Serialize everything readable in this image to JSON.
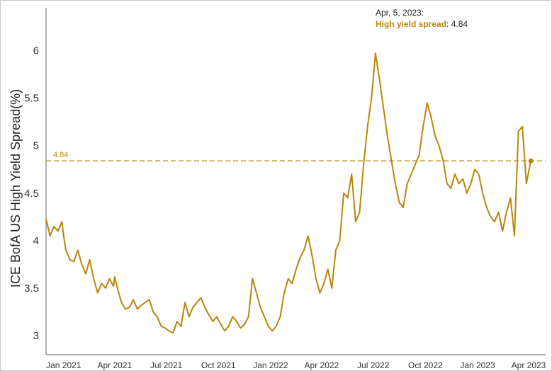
{
  "colors": {
    "series": "#b8860b",
    "axis": "#555555",
    "tooltip_label": "#b8860b"
  },
  "chart_data": {
    "type": "line",
    "ylabel": "ICE BofA US High Yield Spread(%)",
    "xlabel": "",
    "ylim": [
      2.8,
      6.45
    ],
    "y_ticks": [
      3,
      3.5,
      4,
      4.5,
      5,
      5.5,
      6
    ],
    "y_tick_labels": [
      "3",
      "3.5",
      "4",
      "4.5",
      "5",
      "5.5",
      "6"
    ],
    "x_range": [
      "2020-12-01",
      "2023-05-01"
    ],
    "x_ticks": [
      "2021-01-01",
      "2021-04-01",
      "2021-07-01",
      "2021-10-01",
      "2022-01-01",
      "2022-04-01",
      "2022-07-01",
      "2022-10-01",
      "2023-01-01",
      "2023-04-01"
    ],
    "x_tick_labels": [
      "Jan 2021",
      "Apr 2021",
      "Jul 2021",
      "Oct 2021",
      "Jan 2022",
      "Apr 2022",
      "Jul 2022",
      "Oct 2022",
      "Jan 2023",
      "Apr 2023"
    ],
    "reference_line": {
      "value": 4.84,
      "label": "4.84"
    },
    "tooltip": {
      "date": "Apr, 5, 2023:",
      "series_label": "High yield spread",
      "value": "4.84"
    },
    "series": [
      {
        "values": [
          [
            "2020-12-01",
            4.23
          ],
          [
            "2020-12-08",
            4.05
          ],
          [
            "2020-12-15",
            4.15
          ],
          [
            "2020-12-22",
            4.1
          ],
          [
            "2020-12-29",
            4.2
          ],
          [
            "2021-01-01",
            4.05
          ],
          [
            "2021-01-05",
            3.9
          ],
          [
            "2021-01-12",
            3.8
          ],
          [
            "2021-01-19",
            3.78
          ],
          [
            "2021-01-26",
            3.9
          ],
          [
            "2021-02-02",
            3.75
          ],
          [
            "2021-02-09",
            3.65
          ],
          [
            "2021-02-16",
            3.8
          ],
          [
            "2021-02-23",
            3.6
          ],
          [
            "2021-03-02",
            3.45
          ],
          [
            "2021-03-09",
            3.55
          ],
          [
            "2021-03-16",
            3.5
          ],
          [
            "2021-03-23",
            3.6
          ],
          [
            "2021-03-30",
            3.52
          ],
          [
            "2021-04-01",
            3.62
          ],
          [
            "2021-04-06",
            3.5
          ],
          [
            "2021-04-13",
            3.35
          ],
          [
            "2021-04-20",
            3.28
          ],
          [
            "2021-04-27",
            3.3
          ],
          [
            "2021-05-04",
            3.38
          ],
          [
            "2021-05-11",
            3.28
          ],
          [
            "2021-05-18",
            3.32
          ],
          [
            "2021-05-25",
            3.35
          ],
          [
            "2021-06-01",
            3.38
          ],
          [
            "2021-06-08",
            3.25
          ],
          [
            "2021-06-15",
            3.2
          ],
          [
            "2021-06-22",
            3.1
          ],
          [
            "2021-06-29",
            3.08
          ],
          [
            "2021-07-06",
            3.05
          ],
          [
            "2021-07-13",
            3.03
          ],
          [
            "2021-07-20",
            3.15
          ],
          [
            "2021-07-27",
            3.1
          ],
          [
            "2021-08-03",
            3.35
          ],
          [
            "2021-08-10",
            3.2
          ],
          [
            "2021-08-17",
            3.3
          ],
          [
            "2021-08-24",
            3.35
          ],
          [
            "2021-08-31",
            3.4
          ],
          [
            "2021-09-07",
            3.3
          ],
          [
            "2021-09-14",
            3.22
          ],
          [
            "2021-09-21",
            3.15
          ],
          [
            "2021-09-28",
            3.2
          ],
          [
            "2021-10-05",
            3.12
          ],
          [
            "2021-10-12",
            3.05
          ],
          [
            "2021-10-19",
            3.1
          ],
          [
            "2021-10-26",
            3.2
          ],
          [
            "2021-11-02",
            3.15
          ],
          [
            "2021-11-09",
            3.08
          ],
          [
            "2021-11-16",
            3.12
          ],
          [
            "2021-11-23",
            3.2
          ],
          [
            "2021-11-30",
            3.6
          ],
          [
            "2021-12-07",
            3.45
          ],
          [
            "2021-12-14",
            3.3
          ],
          [
            "2021-12-21",
            3.2
          ],
          [
            "2021-12-28",
            3.1
          ],
          [
            "2022-01-04",
            3.05
          ],
          [
            "2022-01-11",
            3.1
          ],
          [
            "2022-01-18",
            3.2
          ],
          [
            "2022-01-25",
            3.45
          ],
          [
            "2022-02-01",
            3.6
          ],
          [
            "2022-02-08",
            3.55
          ],
          [
            "2022-02-15",
            3.7
          ],
          [
            "2022-02-22",
            3.82
          ],
          [
            "2022-03-01",
            3.9
          ],
          [
            "2022-03-08",
            4.05
          ],
          [
            "2022-03-15",
            3.85
          ],
          [
            "2022-03-22",
            3.6
          ],
          [
            "2022-03-29",
            3.45
          ],
          [
            "2022-04-05",
            3.55
          ],
          [
            "2022-04-12",
            3.7
          ],
          [
            "2022-04-19",
            3.5
          ],
          [
            "2022-04-26",
            3.9
          ],
          [
            "2022-05-03",
            4.0
          ],
          [
            "2022-05-10",
            4.5
          ],
          [
            "2022-05-17",
            4.45
          ],
          [
            "2022-05-24",
            4.7
          ],
          [
            "2022-05-31",
            4.2
          ],
          [
            "2022-06-07",
            4.3
          ],
          [
            "2022-06-14",
            4.8
          ],
          [
            "2022-06-21",
            5.2
          ],
          [
            "2022-06-28",
            5.5
          ],
          [
            "2022-07-05",
            5.97
          ],
          [
            "2022-07-12",
            5.7
          ],
          [
            "2022-07-19",
            5.4
          ],
          [
            "2022-07-26",
            5.1
          ],
          [
            "2022-08-02",
            4.85
          ],
          [
            "2022-08-09",
            4.6
          ],
          [
            "2022-08-16",
            4.4
          ],
          [
            "2022-08-23",
            4.35
          ],
          [
            "2022-08-30",
            4.6
          ],
          [
            "2022-09-06",
            4.7
          ],
          [
            "2022-09-13",
            4.8
          ],
          [
            "2022-09-20",
            4.9
          ],
          [
            "2022-09-27",
            5.2
          ],
          [
            "2022-10-04",
            5.45
          ],
          [
            "2022-10-11",
            5.3
          ],
          [
            "2022-10-18",
            5.1
          ],
          [
            "2022-10-25",
            5.0
          ],
          [
            "2022-11-01",
            4.85
          ],
          [
            "2022-11-08",
            4.6
          ],
          [
            "2022-11-15",
            4.55
          ],
          [
            "2022-11-22",
            4.7
          ],
          [
            "2022-11-29",
            4.6
          ],
          [
            "2022-12-06",
            4.65
          ],
          [
            "2022-12-13",
            4.5
          ],
          [
            "2022-12-20",
            4.6
          ],
          [
            "2022-12-27",
            4.75
          ],
          [
            "2023-01-03",
            4.7
          ],
          [
            "2023-01-10",
            4.5
          ],
          [
            "2023-01-17",
            4.35
          ],
          [
            "2023-01-24",
            4.25
          ],
          [
            "2023-01-31",
            4.2
          ],
          [
            "2023-02-07",
            4.3
          ],
          [
            "2023-02-14",
            4.1
          ],
          [
            "2023-02-21",
            4.3
          ],
          [
            "2023-02-28",
            4.45
          ],
          [
            "2023-03-07",
            4.05
          ],
          [
            "2023-03-14",
            5.15
          ],
          [
            "2023-03-21",
            5.2
          ],
          [
            "2023-03-28",
            4.6
          ],
          [
            "2023-04-05",
            4.84
          ]
        ]
      }
    ]
  }
}
